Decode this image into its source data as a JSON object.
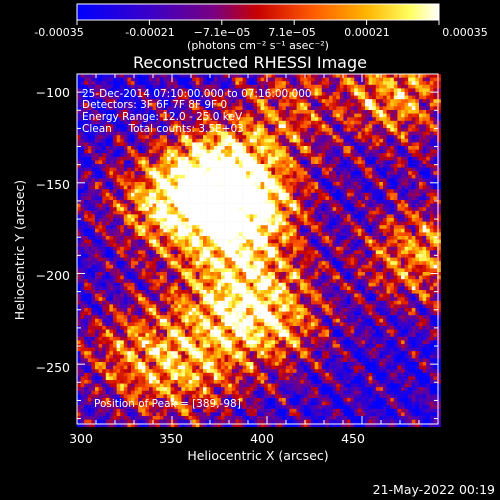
{
  "colors": {
    "background": "#000000",
    "text": "#ffffff",
    "colormap": "red-temperature (blue - purple - red - orange - yellow - white)"
  },
  "colorbar": {
    "ticks": [
      "-0.00035",
      "-0.00021",
      "−7.1e−05",
      "7.1e−05",
      "0.00021",
      "0.00035"
    ],
    "unit_label": "(photons cm⁻² s⁻¹ asec⁻²)",
    "range": [
      -0.00035,
      0.00035
    ]
  },
  "annotations": {
    "time_range": "25-Dec-2014 07:10:00.000 to 07:16:00.000",
    "detectors": "Detectors: 3F 6F 7F 8F 9F 0",
    "energy_range": "Energy Range: 12.0 - 25.0 keV",
    "method": "Clean     Total counts: 3.5E+03",
    "peak": "Position of Peak = [389,-98]"
  },
  "footer": {
    "timestamp": "21-May-2022 00:19"
  },
  "chart_data": {
    "type": "heatmap",
    "title": "Reconstructed RHESSI Image",
    "xlabel": "Heliocentric X (arcsec)",
    "ylabel": "Heliocentric Y (arcsec)",
    "xlim": [
      300,
      490
    ],
    "ylim": [
      -283,
      -90
    ],
    "xticks": [
      300,
      350,
      400,
      450
    ],
    "yticks": [
      -100,
      -150,
      -200,
      -250
    ],
    "xtick_labels": [
      "300",
      "350",
      "400",
      "450"
    ],
    "ytick_labels": [
      "−100",
      "−150",
      "−200",
      "−250"
    ],
    "peak_position": [
      389,
      -98
    ],
    "sources": [
      {
        "x": 375,
        "y": -148,
        "intensity": 1.0
      },
      {
        "x": 390,
        "y": -168,
        "intensity": 0.85
      },
      {
        "x": 345,
        "y": -162,
        "intensity": 0.7
      },
      {
        "x": 380,
        "y": -215,
        "intensity": 0.65
      },
      {
        "x": 405,
        "y": -225,
        "intensity": 0.6
      },
      {
        "x": 468,
        "y": -100,
        "intensity": 0.75
      },
      {
        "x": 480,
        "y": -190,
        "intensity": 0.7
      },
      {
        "x": 330,
        "y": -245,
        "intensity": 0.55
      },
      {
        "x": 360,
        "y": -255,
        "intensity": 0.5
      },
      {
        "x": 410,
        "y": -110,
        "intensity": 0.45
      }
    ]
  }
}
